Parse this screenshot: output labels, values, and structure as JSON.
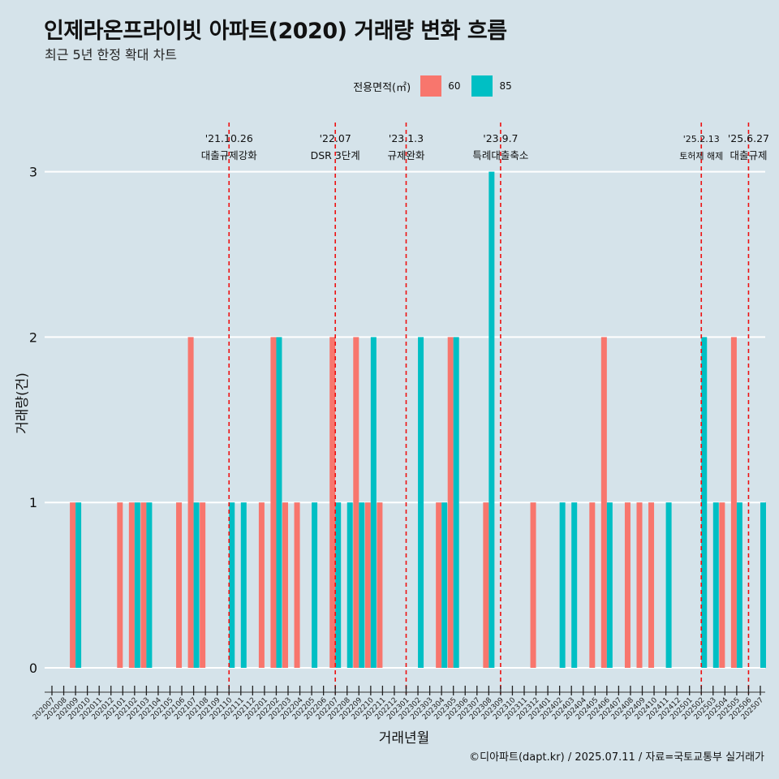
{
  "title": "인제라온프라이빗 아파트(2020) 거래량 변화 흐름",
  "subtitle": "최근 5년 한정 확대 차트",
  "caption": "©디아파트(dapt.kr) / 2025.07.11 / 자료=국토교통부 실거래가",
  "legend": {
    "title": "전용면적(㎡)",
    "items": [
      {
        "label": "60",
        "color": "#f8766d"
      },
      {
        "label": "85",
        "color": "#00bfc4"
      }
    ]
  },
  "chart_data": {
    "type": "bar",
    "xlabel": "거래년월",
    "ylabel": "거래량(건)",
    "ylim": [
      0,
      3
    ],
    "yticks": [
      0,
      1,
      2,
      3
    ],
    "grid": true,
    "legend_position": "top",
    "categories": [
      "202007",
      "202008",
      "202009",
      "202010",
      "202011",
      "202012",
      "202101",
      "202102",
      "202103",
      "202104",
      "202105",
      "202106",
      "202107",
      "202108",
      "202109",
      "202110",
      "202111",
      "202112",
      "202201",
      "202202",
      "202203",
      "202204",
      "202205",
      "202206",
      "202207",
      "202208",
      "202209",
      "202210",
      "202211",
      "202212",
      "202301",
      "202302",
      "202303",
      "202304",
      "202305",
      "202306",
      "202307",
      "202308",
      "202309",
      "202310",
      "202311",
      "202312",
      "202401",
      "202402",
      "202403",
      "202404",
      "202405",
      "202406",
      "202407",
      "202408",
      "202409",
      "202410",
      "202411",
      "202412",
      "202501",
      "202502",
      "202503",
      "202504",
      "202505",
      "202506",
      "202507"
    ],
    "series": [
      {
        "name": "60",
        "color": "#f8766d",
        "values": [
          0,
          0,
          1,
          0,
          0,
          0,
          1,
          1,
          1,
          0,
          0,
          1,
          2,
          1,
          0,
          0,
          0,
          0,
          1,
          2,
          1,
          1,
          0,
          0,
          2,
          0,
          2,
          1,
          1,
          0,
          0,
          0,
          0,
          1,
          2,
          0,
          0,
          1,
          0,
          0,
          0,
          1,
          0,
          0,
          0,
          0,
          1,
          2,
          0,
          1,
          1,
          1,
          0,
          0,
          0,
          0,
          0,
          1,
          2,
          0,
          0
        ]
      },
      {
        "name": "85",
        "color": "#00bfc4",
        "values": [
          0,
          0,
          1,
          0,
          0,
          0,
          0,
          1,
          1,
          0,
          0,
          0,
          1,
          0,
          0,
          1,
          1,
          0,
          0,
          2,
          0,
          0,
          1,
          0,
          1,
          1,
          1,
          2,
          0,
          0,
          0,
          2,
          0,
          1,
          2,
          0,
          0,
          3,
          0,
          0,
          0,
          0,
          0,
          1,
          1,
          0,
          0,
          1,
          0,
          0,
          0,
          0,
          1,
          0,
          0,
          2,
          1,
          0,
          1,
          0,
          1
        ]
      }
    ],
    "events": [
      {
        "month": "202110",
        "date": "'21.10.26",
        "label": "대출규제강화"
      },
      {
        "month": "202207",
        "date": "'22.07",
        "label": "DSR 3단계"
      },
      {
        "month": "202301",
        "date": "'23.1.3",
        "label": "규제완화"
      },
      {
        "month": "202309",
        "date": "'23.9.7",
        "label": "특례대출축소"
      },
      {
        "month": "202502",
        "date": "'25.2.13",
        "label": "토허제 해제"
      },
      {
        "month": "202506",
        "date": "'25.6.27",
        "label": "대출규제"
      }
    ]
  }
}
